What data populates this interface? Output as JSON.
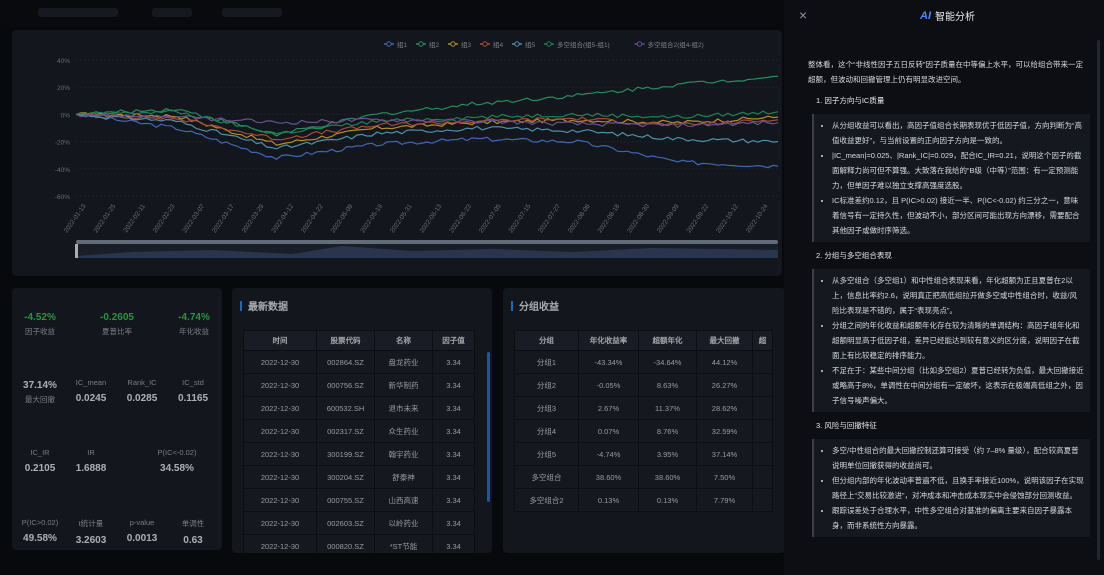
{
  "chart": {
    "legend": [
      "组1",
      "组2",
      "组3",
      "组4",
      "组5",
      "多空组合(组5-组1)",
      "多空组合2(组4-组2)"
    ],
    "legend_colors": [
      "#5b8ff9",
      "#3bbf83",
      "#f4c542",
      "#e8684a",
      "#6dc8ec",
      "#2bb673",
      "#9270ca"
    ],
    "y_ticks": [
      "40%",
      "20%",
      "0%",
      "-20%",
      "-40%",
      "-60%"
    ],
    "x_ticks": [
      "2022-01-13",
      "2022-01-25",
      "2022-02-11",
      "2022-02-23",
      "2022-03-07",
      "2022-03-17",
      "2022-03-29",
      "2022-04-12",
      "2022-04-22",
      "2022-05-09",
      "2022-05-19",
      "2022-05-31",
      "2022-06-13",
      "2022-06-23",
      "2022-07-05",
      "2022-07-15",
      "2022-07-27",
      "2022-08-08",
      "2022-08-18",
      "2022-08-30",
      "2022-09-09",
      "2022-09-22",
      "2022-10-12",
      "2022-10-24"
    ]
  },
  "chart_data": {
    "type": "line",
    "ylim": [
      -60,
      40
    ],
    "x": [
      "2022-01-13",
      "2022-02-23",
      "2022-04-22",
      "2022-05-19",
      "2022-07-05",
      "2022-08-18",
      "2022-09-22",
      "2022-10-24"
    ],
    "series": [
      {
        "name": "组1",
        "values": [
          0,
          -10,
          -32,
          -22,
          -18,
          -20,
          -35,
          -38
        ]
      },
      {
        "name": "组2",
        "values": [
          0,
          4,
          -15,
          0,
          8,
          14,
          22,
          28
        ]
      },
      {
        "name": "组3",
        "values": [
          0,
          -1,
          -22,
          -10,
          -6,
          -4,
          -6,
          -2
        ]
      },
      {
        "name": "组4",
        "values": [
          0,
          -3,
          -18,
          -8,
          -5,
          -3,
          -8,
          -4
        ]
      },
      {
        "name": "组5",
        "values": [
          0,
          -5,
          -25,
          -14,
          -10,
          -12,
          -18,
          -20
        ]
      },
      {
        "name": "多空组合(组5-组1)",
        "values": [
          0,
          2,
          -14,
          -5,
          -2,
          0,
          -2,
          2
        ]
      },
      {
        "name": "多空组合2(组4-组2)",
        "values": [
          0,
          -2,
          -6,
          -4,
          -5,
          -7,
          -8,
          -6
        ]
      }
    ]
  },
  "stats": [
    {
      "value": "-4.52%",
      "label": "因子收益",
      "green": true
    },
    {
      "value": "-0.2605",
      "label": "夏普比率",
      "green": true
    },
    {
      "value": "-4.74%",
      "label": "年化收益",
      "green": true
    },
    {
      "value": "37.14%",
      "label": "最大回撤"
    },
    {
      "value": "0.0245",
      "label": "IC_mean"
    },
    {
      "value": "0.0285",
      "label": "Rank_IC"
    },
    {
      "value": "0.1165",
      "label": "IC_std"
    },
    {
      "value": "0.2105",
      "label": "IC_IR"
    },
    {
      "value": "1.6888",
      "label": "IR"
    },
    {
      "value": "34.58%",
      "label": "P(IC<-0.02)"
    },
    {
      "value": "49.58%",
      "label": "P(IC>0.02)"
    },
    {
      "value": "3.2603",
      "label": "t统计量"
    },
    {
      "value": "0.0013",
      "label": "p-value"
    },
    {
      "value": "0.63",
      "label": "单调性"
    }
  ],
  "latest": {
    "title": "最新数据",
    "headers": [
      "时间",
      "股票代码",
      "名称",
      "因子值"
    ],
    "rows": [
      [
        "2022-12-30",
        "002864.SZ",
        "盘龙药业",
        "3.34"
      ],
      [
        "2022-12-30",
        "000756.SZ",
        "新华制药",
        "3.34"
      ],
      [
        "2022-12-30",
        "600532.SH",
        "退市未来",
        "3.34"
      ],
      [
        "2022-12-30",
        "002317.SZ",
        "众生药业",
        "3.34"
      ],
      [
        "2022-12-30",
        "300199.SZ",
        "翰宇药业",
        "3.34"
      ],
      [
        "2022-12-30",
        "300204.SZ",
        "舒泰神",
        "3.34"
      ],
      [
        "2022-12-30",
        "000755.SZ",
        "山西高速",
        "3.34"
      ],
      [
        "2022-12-30",
        "002603.SZ",
        "以岭药业",
        "3.34"
      ],
      [
        "2022-12-30",
        "000820.SZ",
        "*ST节能",
        "3.34"
      ]
    ]
  },
  "groups": {
    "title": "分组收益",
    "headers": [
      "分组",
      "年化收益率",
      "超额年化",
      "最大回撤",
      "超"
    ],
    "rows": [
      [
        "分组1",
        "-43.34%",
        "-34.64%",
        "44.12%",
        ""
      ],
      [
        "分组2",
        "-0.05%",
        "8.63%",
        "26.27%",
        ""
      ],
      [
        "分组3",
        "2.67%",
        "11.37%",
        "28.62%",
        ""
      ],
      [
        "分组4",
        "0.07%",
        "8.76%",
        "32.59%",
        ""
      ],
      [
        "分组5",
        "-4.74%",
        "3.95%",
        "37.14%",
        ""
      ],
      [
        "多空组合",
        "38.60%",
        "38.60%",
        "7.50%",
        ""
      ],
      [
        "多空组合2",
        "0.13%",
        "0.13%",
        "7.79%",
        ""
      ]
    ]
  },
  "drawer": {
    "close": "×",
    "badge": "AI",
    "title": "智能分析",
    "intro": "整体看，这个“非线性因子五日反转”因子质量在中等偏上水平，可以给组合带来一定超额，但波动和回撤管理上仍有明显改进空间。",
    "sections": [
      {
        "heading": "1. 因子方向与IC质量",
        "items": [
          "从分组收益可以看出，高因子值组合长期表现优于低因子值，方向判断为“高值收益更好”，与当前设置的正向因子方向是一致的。",
          "|IC_mean|=0.025、|Rank_IC|=0.029，配合IC_IR=0.21，说明这个因子的截面解释力尚可但不算强。大致落在我给的“B级（中等）”范围：有一定预测能力，但单因子难以独立支撑高强度选股。",
          "IC标准差约0.12，且 P(IC>0.02) 接近一半、P(IC<-0.02) 约三分之一，意味着信号有一定持久性，但波动不小，部分区间可能出现方向漂移，需要配合其他因子或做时序筛选。"
        ]
      },
      {
        "heading": "2. 分组与多空组合表现",
        "items": [
          "从多空组合（多空组1）和中性组合表现来看，年化超额为正且夏普在2以上，信息比率约2.6，说明真正把高低组拉开做多空或中性组合时，收益/风险比表现是不错的，属于“表现亮点”。",
          "分组之间的年化收益和超额年化存在较为清晰的单调结构：高因子组年化和超额明显高于低因子组，差异已经能达到较有意义的区分度，说明因子在截面上有比较稳定的排序能力。",
          "不足在于：某些中间分组（比如多空组2）夏普已经转为负值，最大回撤接近或略高于8%，单调性在中间分组有一定破坏，这表示在极端高低组之外，因子信号噪声偏大。"
        ]
      },
      {
        "heading": "3. 风险与回撤特征",
        "items": [
          "多空/中性组合的最大回撤控制还算可接受（约 7–8% 量级），配合较高夏普说明单位回撤获得的收益尚可。",
          "但分组内部的年化波动率普遍不低，且换手率接近100%，说明该因子在实现路径上“交易比较激进”，对冲成本和冲击成本现实中会侵蚀部分回测收益。",
          "跟踪误差处于合理水平，中性多空组合对基准的偏离主要来自因子暴露本身，而非系统性方向暴露。"
        ]
      }
    ]
  }
}
